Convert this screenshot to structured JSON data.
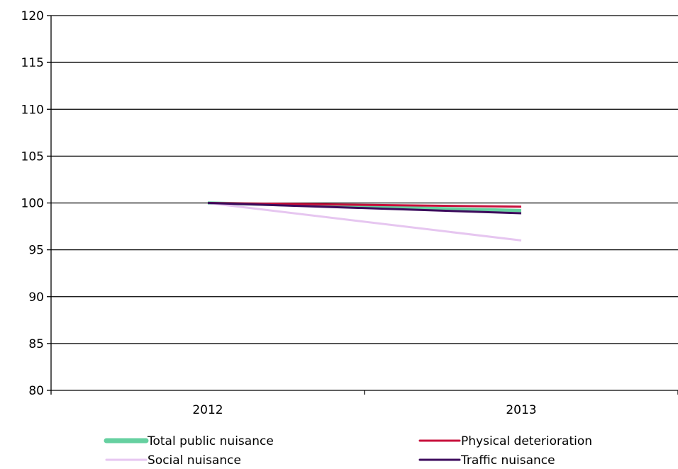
{
  "chart_data": {
    "type": "line",
    "categories": [
      "2012",
      "2013"
    ],
    "series": [
      {
        "name": "Total public nuisance",
        "values": [
          100.0,
          99.2
        ],
        "color": "#66d0a0",
        "stroke": "thick"
      },
      {
        "name": "Physical deterioration",
        "values": [
          100.0,
          99.6
        ],
        "color": "#c8103c",
        "stroke": "normal"
      },
      {
        "name": "Social nuisance",
        "values": [
          100.0,
          96.0
        ],
        "color": "#e6c6f0",
        "stroke": "normal"
      },
      {
        "name": "Traffic nuisance",
        "values": [
          100.0,
          98.9
        ],
        "color": "#3c0a5c",
        "stroke": "normal"
      }
    ],
    "ylim": [
      80,
      120
    ],
    "yticks": [
      80,
      85,
      90,
      95,
      100,
      105,
      110,
      115,
      120
    ],
    "grid": true,
    "legend_position": "bottom",
    "title": "",
    "xlabel": "",
    "ylabel": ""
  }
}
